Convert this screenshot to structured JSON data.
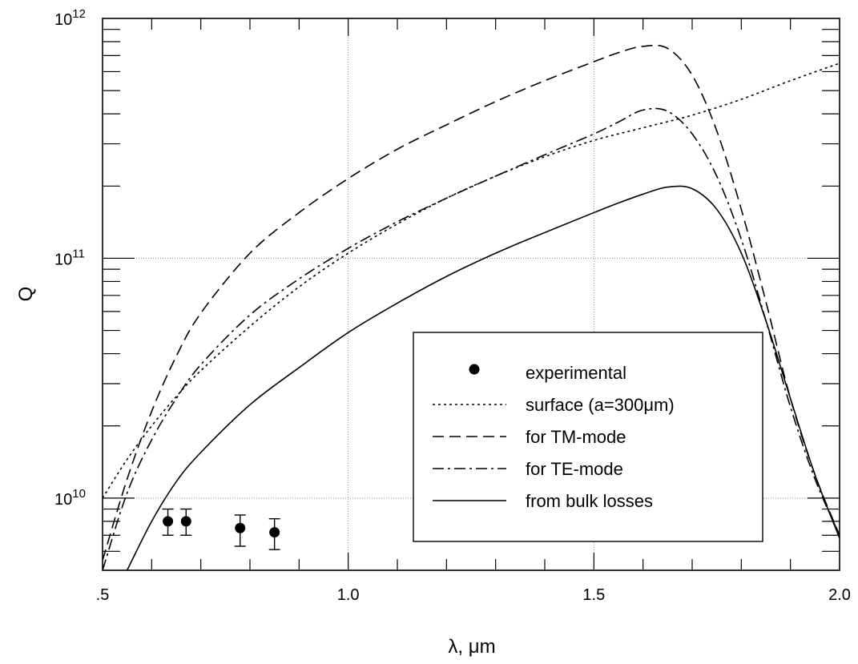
{
  "chart_data": {
    "type": "line",
    "title": "",
    "xlabel": "λ, μm",
    "ylabel": "Q",
    "xlim": [
      0.5,
      2.0
    ],
    "ylim": [
      5000000000,
      1000000000000
    ],
    "yscale": "log",
    "grid": true,
    "legend_position": "lower-right",
    "x_ticks": [
      {
        "value": 0.5,
        "label": ".5"
      },
      {
        "value": 1.0,
        "label": "1.0"
      },
      {
        "value": 1.5,
        "label": "1.5"
      },
      {
        "value": 2.0,
        "label": "2.0"
      }
    ],
    "y_ticks": [
      {
        "value": 10000000000,
        "base": "10",
        "exp": "10"
      },
      {
        "value": 100000000000,
        "base": "10",
        "exp": "11"
      },
      {
        "value": 1000000000000,
        "base": "10",
        "exp": "12"
      }
    ],
    "experimental": {
      "name": "experimental",
      "points": [
        {
          "x": 0.633,
          "y": 8000000000.0,
          "err_low": 7000000000.0,
          "err_high": 9000000000.0
        },
        {
          "x": 0.67,
          "y": 8000000000.0,
          "err_low": 7000000000.0,
          "err_high": 9000000000.0
        },
        {
          "x": 0.78,
          "y": 7500000000.0,
          "err_low": 6300000000.0,
          "err_high": 8500000000.0
        },
        {
          "x": 0.85,
          "y": 7200000000.0,
          "err_low": 6100000000.0,
          "err_high": 8200000000.0
        }
      ]
    },
    "series": [
      {
        "name": "surface (a=300μm)",
        "dash": "dotted",
        "x": [
          0.5,
          0.55,
          0.6,
          0.65,
          0.7,
          0.8,
          0.9,
          1.0,
          1.1,
          1.2,
          1.3,
          1.4,
          1.5,
          1.6,
          1.7,
          1.8,
          1.9,
          2.0
        ],
        "y": [
          10000000000.0,
          14500000000.0,
          20000000000.0,
          26500000000.0,
          34000000000.0,
          52000000000.0,
          76000000000.0,
          105000000000.0,
          139000000000.0,
          178000000000.0,
          220000000000.0,
          265000000000.0,
          310000000000.0,
          350000000000.0,
          395000000000.0,
          460000000000.0,
          550000000000.0,
          650000000000.0
        ]
      },
      {
        "name": "for TM-mode",
        "dash": "dashed",
        "x": [
          0.5,
          0.55,
          0.6,
          0.65,
          0.7,
          0.8,
          0.9,
          1.0,
          1.1,
          1.2,
          1.3,
          1.4,
          1.5,
          1.55,
          1.6,
          1.65,
          1.7,
          1.75,
          1.8,
          1.85,
          1.9,
          1.95,
          2.0
        ],
        "y": [
          5500000000.0,
          12000000000.0,
          23000000000.0,
          39000000000.0,
          59000000000.0,
          105000000000.0,
          155000000000.0,
          215000000000.0,
          285000000000.0,
          360000000000.0,
          450000000000.0,
          550000000000.0,
          660000000000.0,
          720000000000.0,
          765000000000.0,
          750000000000.0,
          580000000000.0,
          340000000000.0,
          160000000000.0,
          66000000000.0,
          26000000000.0,
          12500000000.0,
          7000000000.0
        ]
      },
      {
        "name": "for TE-mode",
        "dash": "dashdot",
        "x": [
          0.5,
          0.55,
          0.6,
          0.65,
          0.7,
          0.8,
          0.9,
          1.0,
          1.1,
          1.2,
          1.3,
          1.4,
          1.5,
          1.55,
          1.6,
          1.65,
          1.7,
          1.75,
          1.8,
          1.85,
          1.9,
          1.95,
          2.0
        ],
        "y": [
          5000000000.0,
          10500000000.0,
          17500000000.0,
          26000000000.0,
          36000000000.0,
          58000000000.0,
          82000000000.0,
          110000000000.0,
          142000000000.0,
          178000000000.0,
          220000000000.0,
          270000000000.0,
          330000000000.0,
          370000000000.0,
          415000000000.0,
          410000000000.0,
          330000000000.0,
          220000000000.0,
          120000000000.0,
          55000000000.0,
          24000000000.0,
          12000000000.0,
          7000000000.0
        ]
      },
      {
        "name": "from bulk losses",
        "dash": "solid",
        "x": [
          0.55,
          0.6,
          0.65,
          0.7,
          0.8,
          0.9,
          1.0,
          1.1,
          1.2,
          1.3,
          1.4,
          1.5,
          1.55,
          1.6,
          1.65,
          1.7,
          1.75,
          1.8,
          1.85,
          1.9,
          1.95,
          2.0
        ],
        "y": [
          5000000000.0,
          8000000000.0,
          11700000000.0,
          15500000000.0,
          24500000000.0,
          35000000000.0,
          49000000000.0,
          65000000000.0,
          84000000000.0,
          105000000000.0,
          128000000000.0,
          155000000000.0,
          170000000000.0,
          185000000000.0,
          198000000000.0,
          195000000000.0,
          160000000000.0,
          105000000000.0,
          55000000000.0,
          26000000000.0,
          12500000000.0,
          6800000000.0
        ]
      }
    ]
  }
}
